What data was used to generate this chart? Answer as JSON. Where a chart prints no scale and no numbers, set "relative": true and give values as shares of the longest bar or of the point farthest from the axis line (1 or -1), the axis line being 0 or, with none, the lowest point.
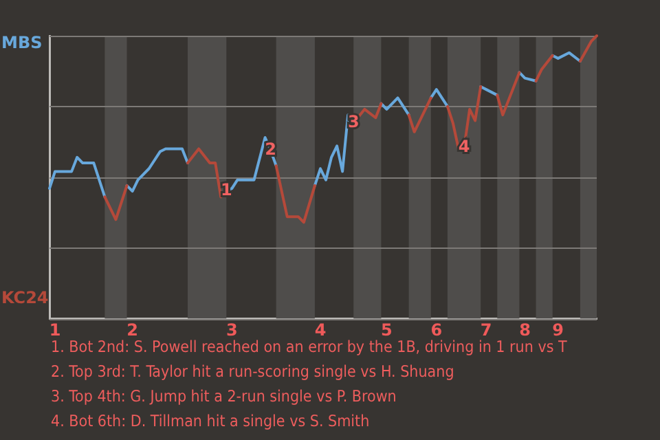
{
  "chart_data": {
    "type": "line",
    "relative": true,
    "grid": "y",
    "tick_labels": "x",
    "categories": [
      null,
      "1",
      null,
      null,
      null,
      null,
      null,
      null,
      null,
      null,
      null,
      null,
      null,
      null,
      null,
      "2",
      null,
      null,
      null,
      null,
      null,
      null,
      null,
      null,
      null,
      null,
      null,
      null,
      null,
      null,
      null,
      null,
      null,
      "3",
      null,
      null,
      null,
      null,
      null,
      null,
      null,
      null,
      null,
      null,
      null,
      null,
      null,
      null,
      null,
      "4",
      null,
      null,
      null,
      null,
      null,
      null,
      null,
      null,
      null,
      null,
      null,
      "5",
      null,
      null,
      null,
      null,
      null,
      null,
      null,
      null,
      "6",
      null,
      null,
      null,
      null,
      null,
      null,
      null,
      null,
      "7",
      null,
      null,
      null,
      null,
      null,
      null,
      "8",
      null,
      null,
      null,
      null,
      null,
      "9",
      null,
      null,
      null,
      null,
      null,
      null,
      null
    ],
    "series": [
      {
        "name": "MBS",
        "color": "#68a8dc",
        "values": [
          0.46,
          0.52,
          null,
          null,
          0.52,
          0.57,
          0.55,
          null,
          0.55,
          null,
          0.43,
          null,
          null,
          null,
          0.47,
          0.45,
          0.49,
          null,
          0.53,
          null,
          0.59,
          0.6,
          null,
          null,
          0.6,
          0.55,
          null,
          null,
          null,
          null,
          null,
          null,
          0.452,
          0.46,
          0.49,
          null,
          null,
          0.49,
          null,
          0.64,
          0.595,
          0.54,
          null,
          null,
          null,
          null,
          null,
          null,
          0.47,
          0.53,
          0.49,
          0.57,
          0.61,
          0.52,
          0.72,
          0.692,
          null,
          null,
          null,
          null,
          0.76,
          0.74,
          null,
          0.78,
          null,
          0.72,
          null,
          null,
          null,
          0.78,
          0.81,
          null,
          0.75,
          null,
          null,
          null,
          null,
          null,
          0.82,
          0.81,
          null,
          0.79,
          null,
          null,
          null,
          0.87,
          0.85,
          null,
          0.84,
          null,
          null,
          0.93,
          0.92,
          null,
          0.94,
          null,
          0.91,
          null,
          null,
          null
        ]
      },
      {
        "name": "KC24",
        "color": "#b5493a",
        "values": [
          null,
          null,
          null,
          null,
          null,
          null,
          null,
          null,
          null,
          null,
          0.43,
          null,
          0.35,
          null,
          0.47,
          null,
          null,
          null,
          null,
          null,
          null,
          null,
          null,
          null,
          null,
          0.55,
          null,
          0.6,
          null,
          0.55,
          0.55,
          0.43,
          0.452,
          null,
          null,
          null,
          null,
          null,
          null,
          null,
          null,
          0.54,
          null,
          0.36,
          null,
          0.36,
          0.34,
          null,
          0.47,
          null,
          null,
          null,
          null,
          null,
          null,
          0.692,
          null,
          0.74,
          null,
          0.71,
          0.76,
          null,
          null,
          null,
          null,
          0.72,
          0.66,
          null,
          null,
          0.78,
          null,
          null,
          0.75,
          0.69,
          0.6,
          0.603,
          0.74,
          0.7,
          0.82,
          null,
          null,
          0.79,
          0.72,
          null,
          null,
          0.87,
          null,
          null,
          0.84,
          0.88,
          null,
          0.93,
          null,
          null,
          null,
          null,
          0.91,
          null,
          0.98,
          1
        ]
      }
    ],
    "annotations": [
      {
        "text": "1",
        "y": 0.452
      },
      {
        "text": "2",
        "y": 0.595
      },
      {
        "text": "3",
        "y": 0.692
      },
      {
        "text": "4",
        "y": 0.603
      },
      "1. Bot 2nd: S. Powell reached on an error by the 1B, driving in 1 run vs T",
      "2. Top 3rd: T. Taylor hit a run-scoring single vs H. Shuang",
      "3. Top 4th: G. Jump hit a 2-run single vs P. Brown",
      "4. Bot 6th: D. Tillman hit a single vs S. Smith"
    ]
  }
}
